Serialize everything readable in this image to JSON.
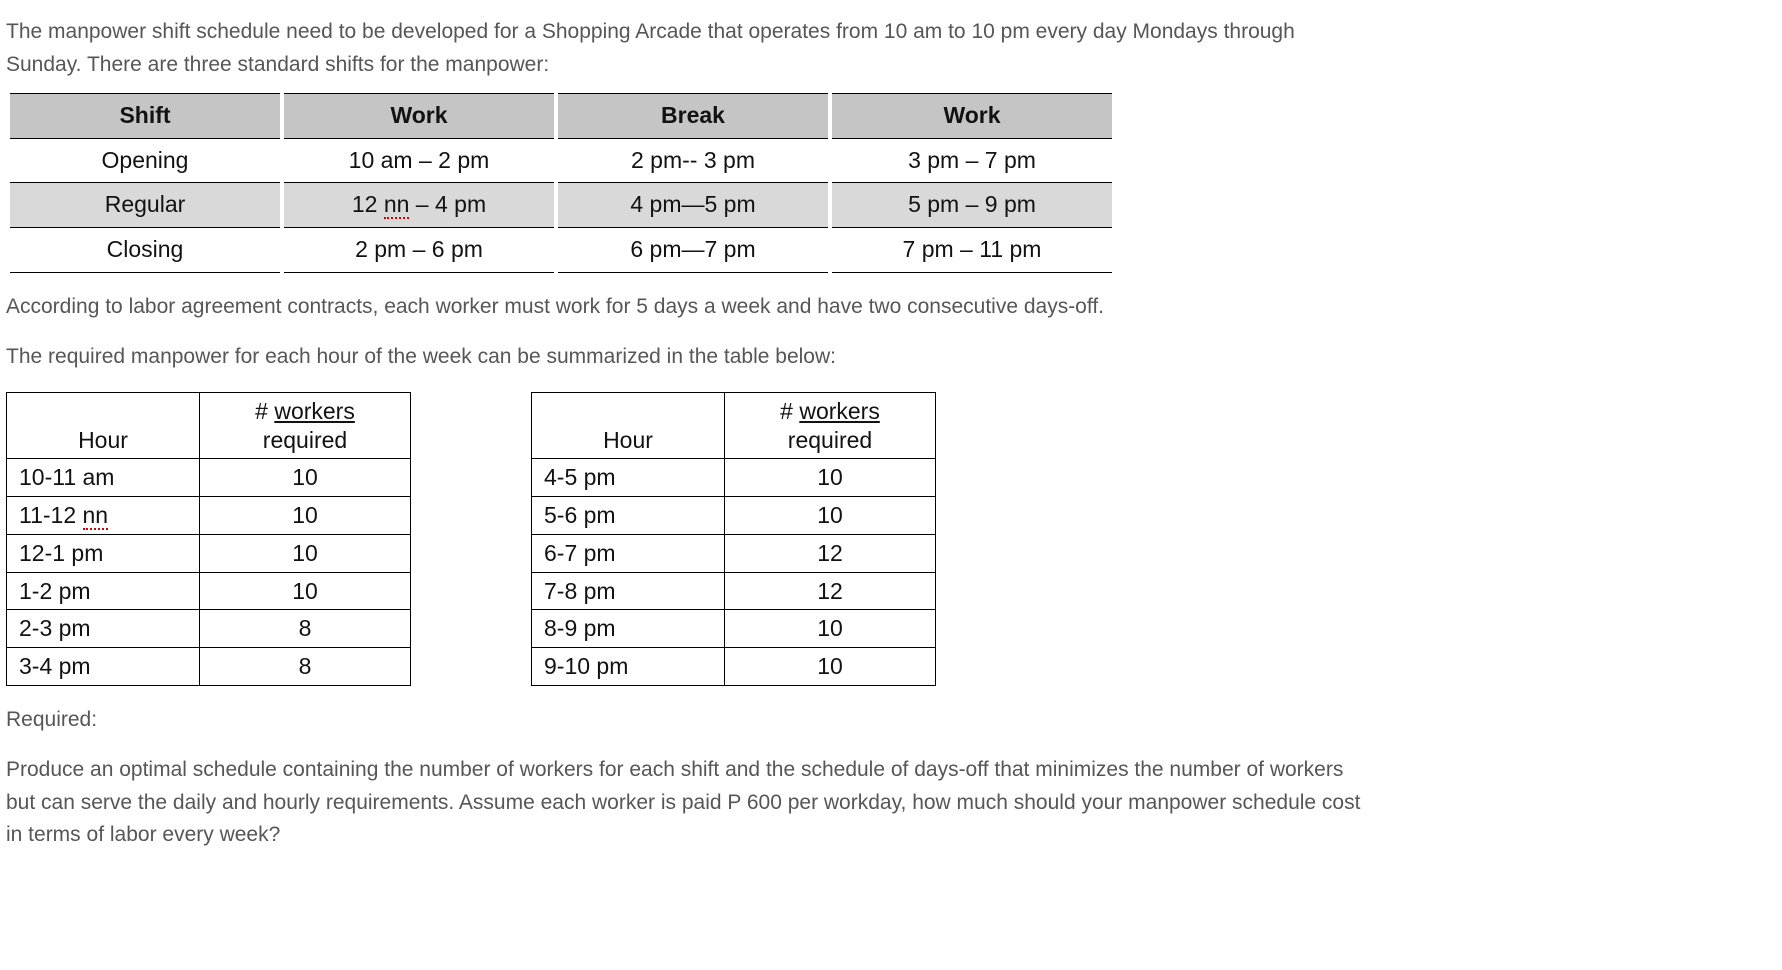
{
  "intro_line1": "The manpower shift schedule need to be developed for a Shopping Arcade that operates from 10 am to 10 pm every day Mondays through",
  "intro_line2": "Sunday.  There are three standard shifts for the manpower:",
  "shift_table": {
    "headers": [
      "Shift",
      "Work",
      "Break",
      "Work"
    ],
    "rows": [
      {
        "alt": false,
        "cells": [
          "Opening",
          "10 am – 2 pm",
          "2 pm-- 3 pm",
          "3 pm – 7 pm"
        ]
      },
      {
        "alt": true,
        "cells": [
          "Regular",
          "12 nn – 4 pm",
          "4 pm—5 pm",
          "5 pm – 9 pm"
        ],
        "spell_nn": true
      },
      {
        "alt": false,
        "cells": [
          "Closing",
          "2 pm – 6 pm",
          "6 pm—7 pm",
          "7 pm – 11 pm"
        ]
      }
    ]
  },
  "mid_para1": "According to labor agreement contracts, each worker must work for 5 days a week and have two consecutive days-off.",
  "mid_para2": "The required manpower for each hour of the week can be summarized in the table below:",
  "workers_left": {
    "header_hour": "Hour",
    "header_req_prefix": "# ",
    "header_req_word": "workers",
    "header_req_line2": "required",
    "rows": [
      {
        "hour": "10-11 am",
        "req": "10"
      },
      {
        "hour": "11-12 nn",
        "req": "10",
        "spell_nn": true
      },
      {
        "hour": "12-1 pm",
        "req": "10"
      },
      {
        "hour": "1-2 pm",
        "req": "10"
      },
      {
        "hour": "2-3 pm",
        "req": "8"
      },
      {
        "hour": "3-4 pm",
        "req": "8"
      }
    ]
  },
  "workers_right": {
    "header_hour": "Hour",
    "header_req_prefix": "# ",
    "header_req_word": "workers",
    "header_req_line2": "required",
    "rows": [
      {
        "hour": "4-5 pm",
        "req": "10"
      },
      {
        "hour": "5-6 pm",
        "req": "10"
      },
      {
        "hour": "6-7 pm",
        "req": "12"
      },
      {
        "hour": "7-8 pm",
        "req": "12"
      },
      {
        "hour": "8-9 pm",
        "req": "10"
      },
      {
        "hour": "9-10 pm",
        "req": "10"
      }
    ]
  },
  "required_label": "Required:",
  "required_line1": "Produce an optimal schedule containing the number of workers for each shift and the schedule of days-off that minimizes the number of workers",
  "required_line2": "but can serve the daily and hourly requirements. Assume each worker is paid P 600 per workday, how much should your manpower schedule cost",
  "required_line3": "in terms of labor every week?"
}
